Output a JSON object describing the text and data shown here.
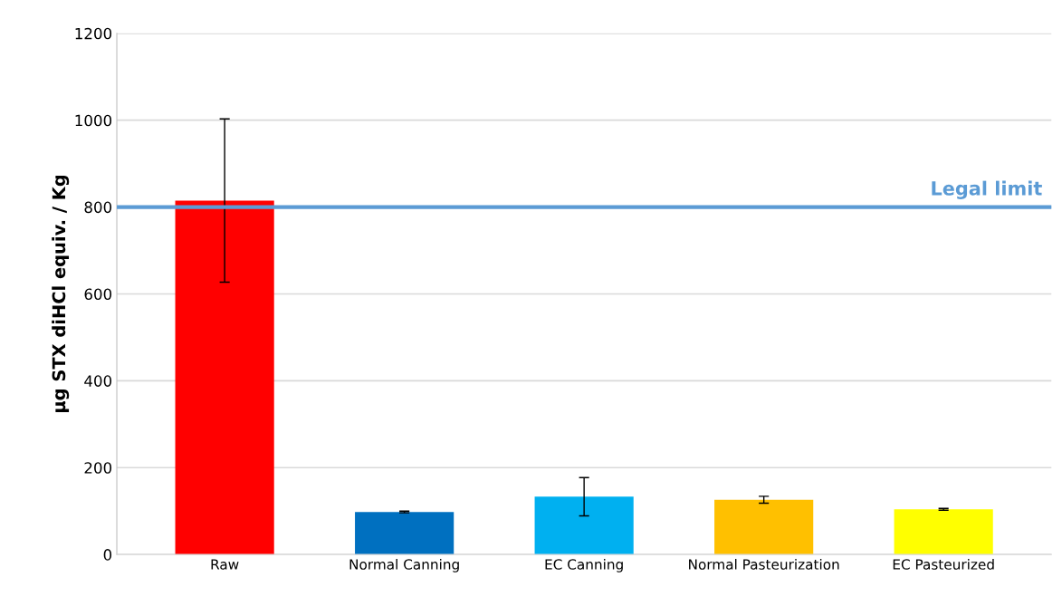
{
  "chart_data": {
    "type": "bar",
    "ylabel": "µg STX diHCl equiv. / Kg",
    "categories": [
      "Raw",
      "Normal Canning",
      "EC Canning",
      "Normal Pasteurization",
      "EC Pasteurized"
    ],
    "values": [
      815,
      98,
      133,
      126,
      104
    ],
    "colors": [
      "#ff0000",
      "#0070c0",
      "#00b0f0",
      "#ffc000",
      "#ffff00"
    ],
    "errors": [
      188,
      2,
      44,
      8,
      2
    ],
    "ylim": [
      0,
      1200
    ],
    "yticks": [
      0,
      200,
      400,
      600,
      800,
      1000,
      1200
    ],
    "grid": "y",
    "ref_lines": [
      {
        "axis": "y",
        "value": 800,
        "label": "Legal limit",
        "color": "#5b9bd5"
      }
    ]
  }
}
